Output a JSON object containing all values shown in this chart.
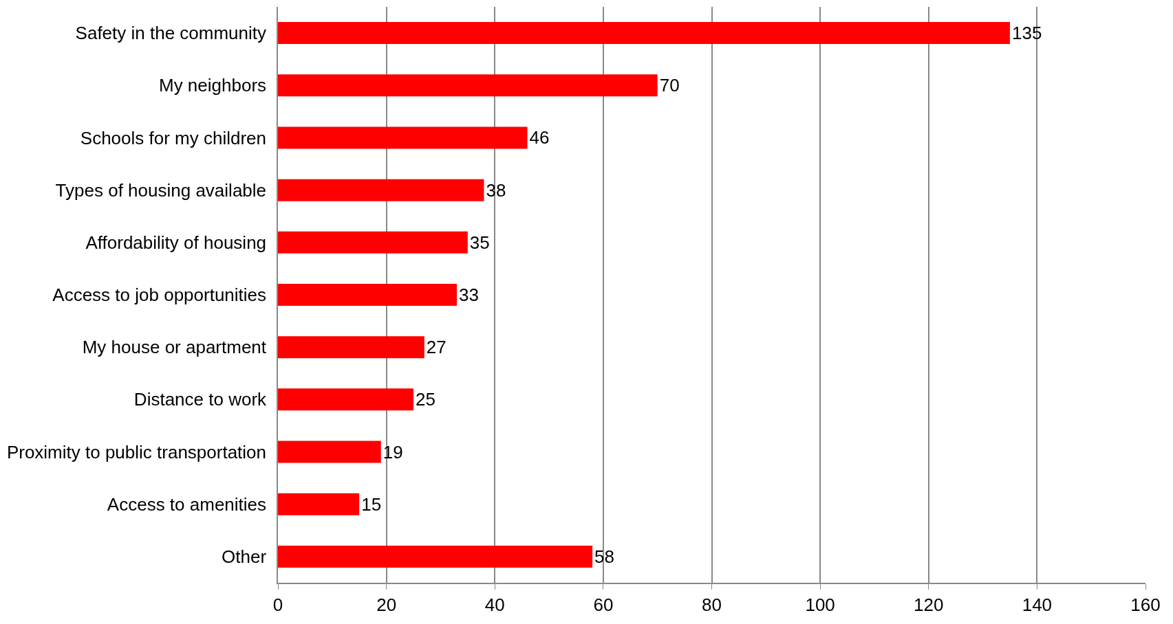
{
  "chart_data": {
    "type": "bar",
    "orientation": "horizontal",
    "categories": [
      "Safety in the community",
      "My neighbors",
      "Schools for my children",
      "Types of housing available",
      "Affordability of housing",
      "Access to job opportunities",
      "My house or apartment",
      "Distance to work",
      "Proximity to public transportation",
      "Access to amenities",
      "Other"
    ],
    "values": [
      135,
      70,
      46,
      38,
      35,
      33,
      27,
      25,
      19,
      15,
      58
    ],
    "color": "#ff0000",
    "xlim": [
      0,
      160
    ],
    "xticks": [
      0,
      20,
      40,
      60,
      80,
      100,
      120,
      140,
      160
    ],
    "grid": "x",
    "data_labels": true,
    "legend": false
  }
}
